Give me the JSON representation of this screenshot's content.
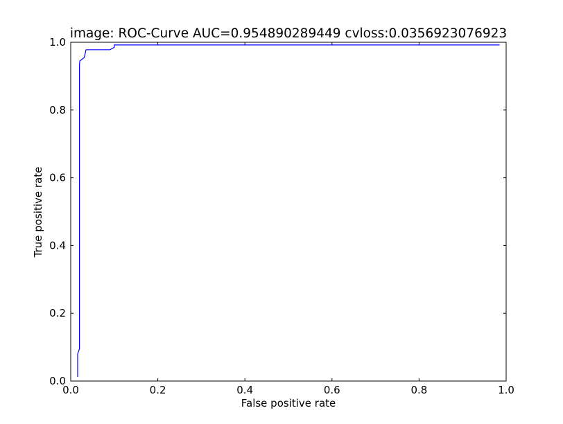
{
  "chart_data": {
    "type": "line",
    "title": "image: ROC-Curve AUC=0.954890289449 cvloss:0.0356923076923",
    "xlabel": "False positive rate",
    "ylabel": "True positive rate",
    "xlim": [
      0.0,
      1.0
    ],
    "ylim": [
      0.0,
      1.0
    ],
    "x_ticks": [
      0.0,
      0.2,
      0.4,
      0.6,
      0.8,
      1.0
    ],
    "y_ticks": [
      0.0,
      0.2,
      0.4,
      0.6,
      0.8,
      1.0
    ],
    "x_tick_labels": [
      "0.0",
      "0.2",
      "0.4",
      "0.6",
      "0.8",
      "1.0"
    ],
    "y_tick_labels": [
      "0.0",
      "0.2",
      "0.4",
      "0.6",
      "0.8",
      "1.0"
    ],
    "grid": false,
    "series": [
      {
        "name": "ROC",
        "color": "#0000ff",
        "x": [
          0.016,
          0.016,
          0.02,
          0.02,
          0.021,
          0.031,
          0.034,
          0.035,
          0.09,
          0.1,
          0.1,
          0.985
        ],
        "y": [
          0.012,
          0.08,
          0.095,
          0.935,
          0.945,
          0.955,
          0.972,
          0.978,
          0.978,
          0.985,
          0.992,
          0.992
        ]
      }
    ]
  }
}
